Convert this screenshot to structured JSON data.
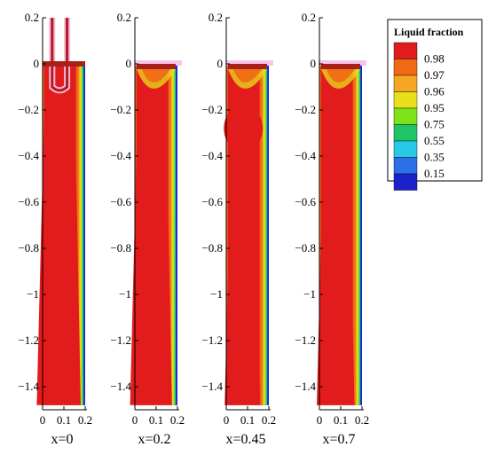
{
  "chart_data": {
    "type": "heatmap",
    "variable": "Liquid fraction",
    "legend": {
      "title": "Liquid fraction",
      "levels": [
        "0.98",
        "0.97",
        "0.96",
        "0.95",
        "0.75",
        "0.55",
        "0.35",
        "0.15"
      ],
      "colors": [
        "#e21c1c",
        "#f06a14",
        "#f5a623",
        "#e8e01a",
        "#7ee21a",
        "#1ec466",
        "#26c9e6",
        "#2d6fe6",
        "#1a22c9"
      ],
      "placement": "top-right"
    },
    "x_axis": {
      "range": [
        0,
        0.2
      ],
      "ticks": [
        "0",
        "0.1",
        "0.2"
      ]
    },
    "y_axis": {
      "range": [
        -1.5,
        0.2
      ],
      "ticks": [
        "0.2",
        "0",
        "-0.2",
        "-0.4",
        "-0.6",
        "-0.8",
        "-1",
        "-1.2",
        "-1.4"
      ]
    },
    "panels": [
      {
        "label": "x=0",
        "inner_half_width": 0.07,
        "dark_cap": false,
        "bulge": false,
        "probe": true
      },
      {
        "label": "x=0.2",
        "inner_half_width": 0.065,
        "dark_cap": true,
        "bulge": false,
        "probe": false
      },
      {
        "label": "x=0.45",
        "inner_half_width": 0.05,
        "dark_cap": true,
        "bulge": true,
        "probe": false
      },
      {
        "label": "x=0.7",
        "inner_half_width": 0.055,
        "dark_cap": true,
        "bulge": false,
        "probe": false
      }
    ]
  }
}
